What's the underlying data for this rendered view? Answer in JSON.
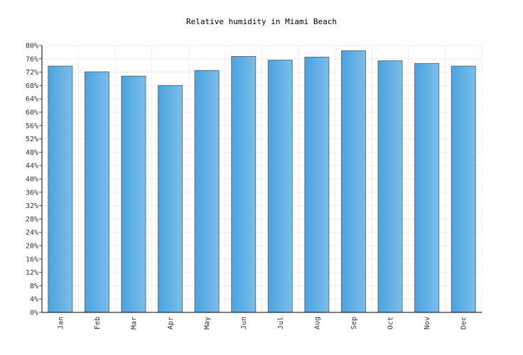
{
  "chart_data": {
    "type": "bar",
    "title": "Relative humidity in Miami Beach",
    "xlabel": "",
    "ylabel": "",
    "categories": [
      "Jan",
      "Feb",
      "Mar",
      "Apr",
      "May",
      "Jun",
      "Jul",
      "Aug",
      "Sep",
      "Oct",
      "Nov",
      "Dec"
    ],
    "values": [
      73.8,
      72.1,
      70.8,
      68.0,
      72.5,
      76.7,
      75.6,
      76.5,
      78.4,
      75.4,
      74.6,
      73.8
    ],
    "ylim": [
      0,
      80
    ],
    "ytick_step": 4,
    "ytick_suffix": "%",
    "grid": true,
    "bar_color": "#4aa3df",
    "bar_color_light": "#7dbde9",
    "bar_stroke": "#5a6f80"
  }
}
